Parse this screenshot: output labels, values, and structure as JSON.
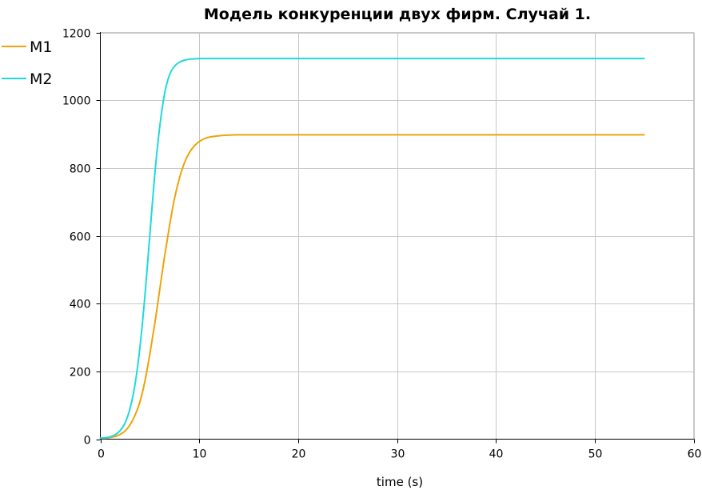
{
  "chart_data": {
    "type": "line",
    "title": "Модель конкуренции двух фирм. Случай 1.",
    "xlabel": "time (s)",
    "ylabel": "",
    "xlim": [
      0,
      60
    ],
    "ylim": [
      0,
      1200
    ],
    "x_ticks": [
      0,
      10,
      20,
      30,
      40,
      50,
      60
    ],
    "y_ticks": [
      0,
      200,
      400,
      600,
      800,
      1000,
      1200
    ],
    "x_tick_labels": [
      "0",
      "10",
      "20",
      "30",
      "40",
      "50",
      "60"
    ],
    "y_tick_labels": [
      "0",
      "200",
      "400",
      "600",
      "800",
      "1000",
      "1200"
    ],
    "grid": true,
    "legend_position": "top-left",
    "series": [
      {
        "name": "M1",
        "color": "#f0a30a",
        "x": [
          0,
          0.5,
          1,
          1.5,
          2,
          2.5,
          3,
          3.5,
          4,
          4.5,
          5,
          5.5,
          6,
          6.5,
          7,
          7.5,
          8,
          8.5,
          9,
          9.5,
          10,
          10.5,
          11,
          12,
          13,
          14,
          15,
          20,
          30,
          40,
          50,
          55
        ],
        "values": [
          3,
          3,
          5,
          8,
          14,
          24,
          42,
          70,
          110,
          170,
          250,
          340,
          440,
          540,
          630,
          710,
          770,
          815,
          845,
          865,
          878,
          886,
          891,
          895,
          897,
          898,
          898,
          898,
          898,
          898,
          898,
          898
        ]
      },
      {
        "name": "M2",
        "color": "#1fdada",
        "x": [
          0,
          0.5,
          1,
          1.5,
          2,
          2.5,
          3,
          3.5,
          4,
          4.5,
          5,
          5.5,
          6,
          6.5,
          7,
          7.5,
          8,
          8.5,
          9,
          9.5,
          10,
          11,
          12,
          13,
          15,
          20,
          30,
          40,
          50,
          55
        ],
        "values": [
          3,
          4,
          7,
          13,
          25,
          48,
          90,
          160,
          270,
          420,
          600,
          780,
          920,
          1020,
          1075,
          1100,
          1112,
          1118,
          1121,
          1122,
          1123,
          1123,
          1123,
          1123,
          1123,
          1123,
          1123,
          1123,
          1123,
          1123
        ]
      }
    ]
  }
}
